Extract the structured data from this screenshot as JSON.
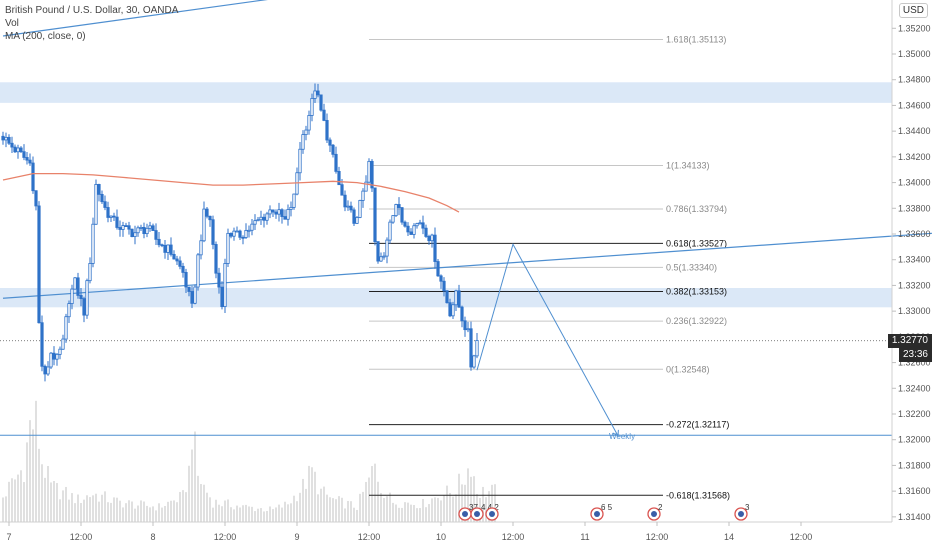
{
  "legend": {
    "symbol": "British Pound / U.S. Dollar, 30, OANDA",
    "volume": "Vol",
    "ma": "MA (200, close, 0)"
  },
  "currency": "USD",
  "current_price": "1.32770",
  "countdown": "23:36",
  "colors": {
    "bull": "#2f72c9",
    "bear": "#2f72c9",
    "volume": "#e0e0e0",
    "ma": "#e8826a",
    "trendline": "#4f8fd0",
    "zone": "#dbe8f7",
    "fib_light": "#c6c6c6",
    "fib_dark": "#222222",
    "projection": "#4f8fd0"
  },
  "chart_data": {
    "type": "candlestick",
    "ylim": [
      1.3136,
      1.3542
    ],
    "y_ticks": [
      "1.35200",
      "1.35000",
      "1.34800",
      "1.34600",
      "1.34400",
      "1.34200",
      "1.34000",
      "1.33800",
      "1.33600",
      "1.33400",
      "1.33200",
      "1.33000",
      "1.32800",
      "1.32600",
      "1.32400",
      "1.32200",
      "1.32000",
      "1.31800",
      "1.31600",
      "1.31400"
    ],
    "x_ticks": [
      {
        "label": "7",
        "i": 2
      },
      {
        "label": "12:00",
        "i": 26
      },
      {
        "label": "8",
        "i": 50
      },
      {
        "label": "12:00",
        "i": 74
      },
      {
        "label": "9",
        "i": 98
      },
      {
        "label": "12:00",
        "i": 122
      },
      {
        "label": "10",
        "i": 146
      },
      {
        "label": "12:00",
        "i": 170
      },
      {
        "label": "11",
        "i": 194
      },
      {
        "label": "12:00",
        "i": 218
      },
      {
        "label": "14",
        "i": 242
      },
      {
        "label": "12:00",
        "i": 266
      }
    ],
    "candle_count": 165,
    "price_anchors": [
      [
        0,
        1.3436
      ],
      [
        2,
        1.343
      ],
      [
        5,
        1.3424
      ],
      [
        9,
        1.3415
      ],
      [
        11,
        1.3381
      ],
      [
        12,
        1.329
      ],
      [
        13,
        1.3258
      ],
      [
        14,
        1.3248
      ],
      [
        16,
        1.3268
      ],
      [
        18,
        1.3262
      ],
      [
        20,
        1.3275
      ],
      [
        22,
        1.331
      ],
      [
        24,
        1.3322
      ],
      [
        27,
        1.33
      ],
      [
        29,
        1.334
      ],
      [
        31,
        1.3398
      ],
      [
        34,
        1.338
      ],
      [
        37,
        1.3369
      ],
      [
        40,
        1.3364
      ],
      [
        44,
        1.3361
      ],
      [
        48,
        1.3365
      ],
      [
        52,
        1.3353
      ],
      [
        56,
        1.3346
      ],
      [
        60,
        1.333
      ],
      [
        63,
        1.3302
      ],
      [
        65,
        1.3342
      ],
      [
        67,
        1.3375
      ],
      [
        69,
        1.3372
      ],
      [
        71,
        1.333
      ],
      [
        73,
        1.3308
      ],
      [
        75,
        1.3362
      ],
      [
        78,
        1.3358
      ],
      [
        82,
        1.3364
      ],
      [
        86,
        1.3372
      ],
      [
        90,
        1.338
      ],
      [
        94,
        1.337
      ],
      [
        97,
        1.3388
      ],
      [
        99,
        1.3428
      ],
      [
        101,
        1.3445
      ],
      [
        103,
        1.3462
      ],
      [
        104,
        1.3474
      ],
      [
        106,
        1.3455
      ],
      [
        108,
        1.3437
      ],
      [
        110,
        1.3418
      ],
      [
        112,
        1.3398
      ],
      [
        114,
        1.338
      ],
      [
        116,
        1.3375
      ],
      [
        118,
        1.337
      ],
      [
        120,
        1.3395
      ],
      [
        122,
        1.3412
      ],
      [
        123,
        1.3395
      ],
      [
        124,
        1.3352
      ],
      [
        125,
        1.3338
      ],
      [
        127,
        1.3342
      ],
      [
        129,
        1.3372
      ],
      [
        131,
        1.3384
      ],
      [
        133,
        1.337
      ],
      [
        136,
        1.3364
      ],
      [
        139,
        1.337
      ],
      [
        141,
        1.3362
      ],
      [
        143,
        1.3355
      ],
      [
        145,
        1.333
      ],
      [
        147,
        1.3316
      ],
      [
        149,
        1.33
      ],
      [
        151,
        1.3312
      ],
      [
        153,
        1.3295
      ],
      [
        155,
        1.3282
      ],
      [
        156,
        1.3258
      ],
      [
        157,
        1.3268
      ],
      [
        158,
        1.3277
      ]
    ],
    "volume_anchors": [
      [
        0,
        0.25
      ],
      [
        7,
        0.55
      ],
      [
        9,
        0.95
      ],
      [
        11,
        1.0
      ],
      [
        13,
        0.6
      ],
      [
        16,
        0.35
      ],
      [
        25,
        0.22
      ],
      [
        30,
        0.28
      ],
      [
        38,
        0.2
      ],
      [
        45,
        0.17
      ],
      [
        52,
        0.15
      ],
      [
        60,
        0.25
      ],
      [
        62,
        0.5
      ],
      [
        63,
        0.95
      ],
      [
        65,
        0.45
      ],
      [
        70,
        0.2
      ],
      [
        80,
        0.15
      ],
      [
        90,
        0.12
      ],
      [
        95,
        0.18
      ],
      [
        100,
        0.35
      ],
      [
        103,
        0.5
      ],
      [
        106,
        0.3
      ],
      [
        110,
        0.22
      ],
      [
        118,
        0.15
      ],
      [
        121,
        0.35
      ],
      [
        124,
        0.55
      ],
      [
        126,
        0.35
      ],
      [
        130,
        0.2
      ],
      [
        140,
        0.18
      ],
      [
        146,
        0.28
      ],
      [
        150,
        0.3
      ],
      [
        154,
        0.45
      ],
      [
        156,
        0.6
      ],
      [
        158,
        0.3
      ]
    ],
    "ma_200": [
      [
        0,
        1.3402
      ],
      [
        10,
        1.3407
      ],
      [
        20,
        1.3407
      ],
      [
        30,
        1.3406
      ],
      [
        40,
        1.3404
      ],
      [
        50,
        1.3402
      ],
      [
        60,
        1.34
      ],
      [
        70,
        1.3398
      ],
      [
        80,
        1.3398
      ],
      [
        90,
        1.3399
      ],
      [
        100,
        1.34
      ],
      [
        110,
        1.3401
      ],
      [
        118,
        1.34
      ],
      [
        126,
        1.3397
      ],
      [
        134,
        1.3393
      ],
      [
        142,
        1.3388
      ],
      [
        148,
        1.3382
      ],
      [
        152,
        1.3377
      ]
    ],
    "trendlines": [
      {
        "from": [
          0,
          1.3514
        ],
        "to": [
          242,
          1.3592
        ]
      },
      {
        "from": [
          0,
          1.331
        ],
        "to": [
          380,
          1.3372
        ]
      }
    ],
    "zones": [
      {
        "from": 1.3478,
        "to": 1.3462
      },
      {
        "from": 1.3318,
        "to": 1.3303
      }
    ],
    "weekly": {
      "value": 1.32035,
      "label": "Weekly"
    },
    "fib": {
      "x_start": 122,
      "x_end": 220,
      "levels": [
        {
          "label": "1.618(1.35113)",
          "value": 1.35113,
          "bold": false
        },
        {
          "label": "1(1.34133)",
          "value": 1.34133,
          "bold": false
        },
        {
          "label": "0.786(1.33794)",
          "value": 1.33794,
          "bold": false
        },
        {
          "label": "0.618(1.33527)",
          "value": 1.33527,
          "bold": true
        },
        {
          "label": "0.5(1.33340)",
          "value": 1.3334,
          "bold": false
        },
        {
          "label": "0.382(1.33153)",
          "value": 1.33153,
          "bold": true
        },
        {
          "label": "0.236(1.32922)",
          "value": 1.32922,
          "bold": false
        },
        {
          "label": "0(1.32548)",
          "value": 1.32548,
          "bold": false
        },
        {
          "label": "-0.272(1.32117)",
          "value": 1.32117,
          "bold": true
        },
        {
          "label": "-0.618(1.31568)",
          "value": 1.31568,
          "bold": true
        }
      ]
    },
    "projection": [
      [
        158,
        1.3254
      ],
      [
        170,
        1.3352
      ],
      [
        205,
        1.3203
      ]
    ],
    "events": [
      {
        "i": 154,
        "label": "37"
      },
      {
        "i": 158,
        "label": "4 4 2"
      },
      {
        "i": 163,
        "label": ""
      },
      {
        "i": 198,
        "label": "6  5"
      },
      {
        "i": 217,
        "label": "2"
      },
      {
        "i": 246,
        "label": "3"
      }
    ]
  }
}
